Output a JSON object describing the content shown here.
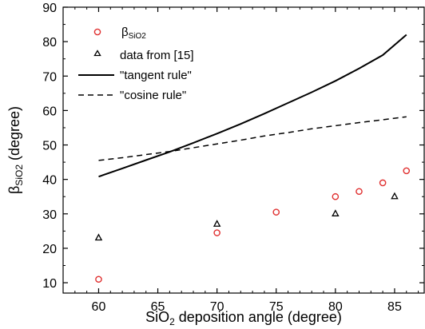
{
  "chart_data": {
    "type": "scatter",
    "xlabel": {
      "pre": "SiO",
      "sub": "2",
      "post": " deposition angle (degree)"
    },
    "ylabel": {
      "greek": "β",
      "sub": "SiO2",
      "post": " (degree)"
    },
    "xlim": [
      57,
      87.5
    ],
    "ylim": [
      7,
      90
    ],
    "xticks": [
      60,
      65,
      70,
      75,
      80,
      85
    ],
    "yticks": [
      10,
      20,
      30,
      40,
      50,
      60,
      70,
      80,
      90
    ],
    "grid": false,
    "legend_position": "top-left",
    "series": [
      {
        "key": "beta",
        "name": "βSiO2",
        "legend": {
          "greek": "β",
          "sub": "SiO2"
        },
        "kind": "scatter",
        "marker": "circle",
        "color": "#e03030",
        "x": [
          60,
          70,
          75,
          80,
          82,
          84,
          86
        ],
        "y": [
          11,
          24.5,
          30.5,
          35,
          36.5,
          39,
          42.5
        ]
      },
      {
        "key": "data15",
        "name": "data from [15]",
        "legend": {
          "text": "data from [15]"
        },
        "kind": "scatter",
        "marker": "triangle",
        "color": "#000000",
        "x": [
          60,
          70,
          80,
          85
        ],
        "y": [
          23,
          27,
          30,
          35
        ]
      },
      {
        "key": "tangent",
        "name": "\"tangent rule\"",
        "legend": {
          "text": "\"tangent rule\""
        },
        "kind": "line",
        "dash": "solid",
        "color": "#000000",
        "x": [
          60,
          62,
          64,
          66,
          68,
          70,
          72,
          74,
          76,
          78,
          80,
          82,
          84,
          86
        ],
        "y": [
          40.8,
          43.2,
          45.6,
          48.0,
          50.6,
          53.3,
          56.1,
          59.1,
          62.2,
          65.3,
          68.6,
          72.2,
          76.1,
          82.0
        ]
      },
      {
        "key": "cosine",
        "name": "\"cosine rule\"",
        "legend": {
          "text": "\"cosine rule\""
        },
        "kind": "line",
        "dash": "dashed",
        "color": "#000000",
        "x": [
          60,
          62,
          64,
          66,
          68,
          70,
          72,
          74,
          76,
          78,
          80,
          82,
          84,
          86
        ],
        "y": [
          45.5,
          46.3,
          47.2,
          48.1,
          49.2,
          50.3,
          51.4,
          52.6,
          53.6,
          54.7,
          55.6,
          56.5,
          57.3,
          58.2
        ]
      }
    ]
  }
}
